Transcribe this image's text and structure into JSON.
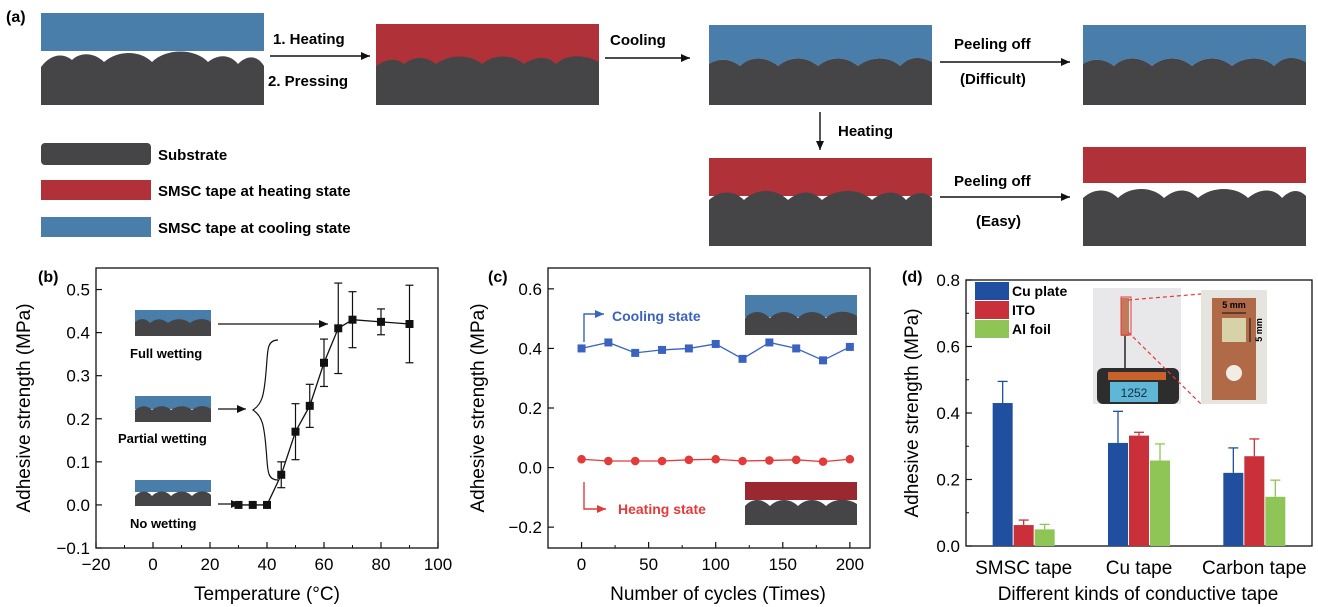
{
  "colors": {
    "substrate": "#454547",
    "heating": "#b03238",
    "cooling": "#4a7eaa",
    "cu_plate": "#1f4f9e",
    "ito": "#c9303a",
    "al_foil": "#8fc557",
    "blue_series": "#3a63c0",
    "red_series": "#e33a3a"
  },
  "panel_a": {
    "label": "(a)",
    "step1": "1. Heating",
    "step2": "2. Pressing",
    "cooling": "Cooling",
    "heating": "Heating",
    "peel_off_1": "Peeling off",
    "difficult": "(Difficult)",
    "peel_off_2": "Peeling off",
    "easy": "(Easy)",
    "legend": [
      "Substrate",
      "SMSC tape at heating state",
      "SMSC tape at cooling state"
    ]
  },
  "panels": [
    {
      "label": "(b)",
      "type": "line",
      "xlabel": "Temperature (°C)",
      "ylabel": "Adhesive strength (MPa)",
      "xlim": [
        -20,
        100
      ],
      "ylim": [
        -0.1,
        0.55
      ],
      "xticks": [
        "−20",
        "0",
        "20",
        "40",
        "60",
        "80",
        "100"
      ],
      "yticks": [
        "−0.1",
        "0.0",
        "0.1",
        "0.2",
        "0.3",
        "0.4",
        "0.5"
      ],
      "annotations": [
        "Full wetting",
        "Partial wetting",
        "No wetting"
      ],
      "series": [
        {
          "x": [
            30,
            35,
            40,
            45,
            50,
            55,
            60,
            65,
            70,
            80,
            90
          ],
          "y": [
            0.0,
            0.0,
            0.0,
            0.07,
            0.17,
            0.23,
            0.33,
            0.41,
            0.43,
            0.425,
            0.42
          ],
          "err": [
            0,
            0,
            0,
            0.03,
            0.065,
            0.05,
            0.055,
            0.105,
            0.065,
            0.03,
            0.09
          ]
        }
      ]
    },
    {
      "label": "(c)",
      "type": "line",
      "xlabel": "Number of cycles (Times)",
      "ylabel": "Adhesive strength (MPa)",
      "xlim": [
        -25,
        215
      ],
      "ylim": [
        -0.27,
        0.67
      ],
      "xticks": [
        "0",
        "50",
        "100",
        "150",
        "200"
      ],
      "yticks": [
        "−0.2",
        "0.0",
        "0.2",
        "0.4",
        "0.6"
      ],
      "series": [
        {
          "name": "Cooling state",
          "x": [
            0,
            20,
            40,
            60,
            80,
            100,
            120,
            140,
            160,
            180,
            200
          ],
          "y": [
            0.4,
            0.42,
            0.385,
            0.395,
            0.4,
            0.415,
            0.365,
            0.42,
            0.4,
            0.36,
            0.405
          ]
        },
        {
          "name": "Heating state",
          "x": [
            0,
            20,
            40,
            60,
            80,
            100,
            120,
            140,
            160,
            180,
            200
          ],
          "y": [
            0.028,
            0.022,
            0.022,
            0.022,
            0.026,
            0.028,
            0.022,
            0.024,
            0.026,
            0.02,
            0.028
          ]
        }
      ]
    },
    {
      "label": "(d)",
      "type": "bar",
      "xlabel": "Different kinds of conductive tape",
      "ylabel": "Adhesive strength (MPa)",
      "ylim": [
        0,
        0.8
      ],
      "yticks": [
        "0.0",
        "0.2",
        "0.4",
        "0.6",
        "0.8"
      ],
      "categories": [
        "SMSC tape",
        "Cu tape",
        "Carbon tape"
      ],
      "series": [
        {
          "name": "Cu plate",
          "values": [
            0.43,
            0.31,
            0.22
          ],
          "err": [
            0.065,
            0.095,
            0.075
          ]
        },
        {
          "name": "ITO",
          "values": [
            0.063,
            0.332,
            0.27
          ],
          "err": [
            0.015,
            0.01,
            0.052
          ]
        },
        {
          "name": "Al foil",
          "values": [
            0.05,
            0.257,
            0.148
          ],
          "err": [
            0.015,
            0.05,
            0.05
          ]
        }
      ],
      "inset_dims": [
        "5 mm",
        "5 mm"
      ],
      "meter_reading": "1252"
    }
  ]
}
